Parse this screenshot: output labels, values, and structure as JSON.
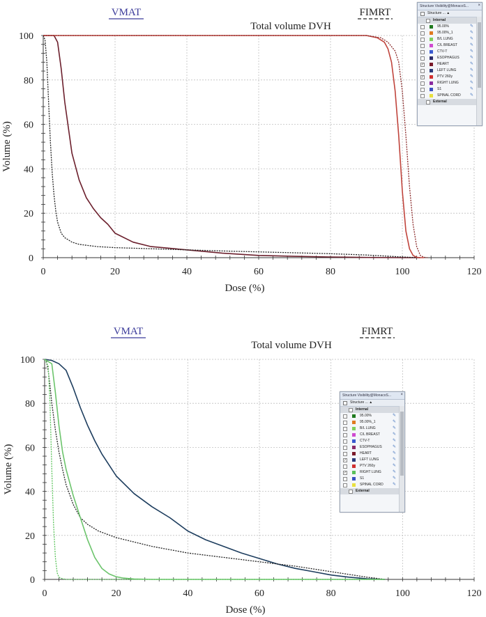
{
  "chart_data": [
    {
      "type": "line",
      "title": "Total volume DVH",
      "xlabel": "Dose (%)",
      "ylabel": "Volume (%)",
      "xlim": [
        0,
        120
      ],
      "ylim": [
        0,
        100
      ],
      "xticks": [
        "0",
        "20",
        "40",
        "60",
        "80",
        "100",
        "120"
      ],
      "yticks": [
        "0",
        "20",
        "40",
        "60",
        "80",
        "100"
      ],
      "grid": "dashed",
      "legend": {
        "items": [
          {
            "label": "VMAT",
            "style": "solid",
            "color": "#3b3b9a"
          },
          {
            "label": "FIMRT",
            "style": "dashed",
            "color": "#222222"
          }
        ],
        "placement": "top"
      },
      "series": [
        {
          "color": "#6b1f2c",
          "style": "solid",
          "x": [
            0,
            3,
            4,
            5,
            6,
            8,
            10,
            12,
            14,
            16,
            18,
            20,
            25,
            30,
            40,
            50,
            60,
            70,
            80,
            90,
            100,
            105
          ],
          "y": [
            100,
            100,
            97,
            85,
            70,
            47,
            35,
            27,
            22,
            18,
            15,
            11,
            7,
            5,
            3.5,
            2,
            1,
            0.6,
            0.3,
            0.1,
            0,
            0
          ]
        },
        {
          "color": "#222222",
          "style": "dashed",
          "x": [
            0,
            0.5,
            1,
            1.5,
            2,
            2.5,
            3,
            3.5,
            4,
            5,
            6,
            8,
            10,
            15,
            20,
            30,
            40,
            50,
            60,
            70,
            80,
            90,
            100,
            105
          ],
          "y": [
            100,
            98,
            88,
            70,
            52,
            38,
            28,
            21,
            16,
            11,
            9,
            7,
            6,
            5,
            4.5,
            4,
            3.5,
            3,
            2.6,
            2.2,
            1.8,
            1.2,
            0.3,
            0
          ]
        },
        {
          "color": "#c0443c",
          "style": "solid",
          "x": [
            0,
            80,
            90,
            93,
            95,
            96,
            97,
            98,
            99,
            100,
            101,
            102,
            103,
            104,
            105,
            106
          ],
          "y": [
            100,
            100,
            100,
            99,
            97,
            94,
            88,
            75,
            55,
            30,
            12,
            4,
            1,
            0.2,
            0,
            0
          ]
        },
        {
          "color": "#8a2a2a",
          "style": "dashed",
          "x": [
            0,
            80,
            90,
            94,
            96,
            98,
            99,
            100,
            101,
            102,
            103,
            104,
            105,
            106,
            107
          ],
          "y": [
            100,
            100,
            100,
            99,
            97,
            93,
            88,
            75,
            55,
            32,
            15,
            5,
            1,
            0.2,
            0
          ]
        }
      ]
    },
    {
      "type": "line",
      "title": "Total volume DVH",
      "xlabel": "Dose (%)",
      "ylabel": "Volume (%)",
      "xlim": [
        0,
        120
      ],
      "ylim": [
        0,
        100
      ],
      "xticks": [
        "0",
        "20",
        "40",
        "60",
        "80",
        "100",
        "120"
      ],
      "yticks": [
        "0",
        "20",
        "40",
        "60",
        "80",
        "100"
      ],
      "grid": "dashed",
      "legend": {
        "items": [
          {
            "label": "VMAT",
            "style": "solid",
            "color": "#3b3b9a"
          },
          {
            "label": "FIMRT",
            "style": "dashed",
            "color": "#222222"
          }
        ],
        "placement": "top"
      },
      "series": [
        {
          "color": "#1d3d5e",
          "style": "solid",
          "x": [
            0,
            2,
            4,
            6,
            8,
            10,
            12,
            14,
            16,
            18,
            20,
            25,
            30,
            35,
            40,
            45,
            50,
            55,
            60,
            65,
            70,
            75,
            80,
            85,
            90,
            95
          ],
          "y": [
            100,
            99.5,
            98,
            95,
            87,
            78,
            70,
            63,
            57,
            52,
            47,
            39,
            33,
            28,
            22,
            18,
            15,
            12,
            9.5,
            7,
            5,
            3.5,
            2,
            1,
            0.3,
            0
          ]
        },
        {
          "color": "#222222",
          "style": "dashed",
          "x": [
            0,
            0.5,
            1,
            1.5,
            2,
            3,
            4,
            5,
            6,
            8,
            10,
            12,
            15,
            20,
            25,
            30,
            40,
            50,
            60,
            70,
            80,
            90,
            95
          ],
          "y": [
            100,
            99,
            95,
            88,
            80,
            68,
            58,
            50,
            43,
            34,
            28,
            25,
            22,
            19,
            17,
            15,
            12,
            10,
            8,
            6,
            3.5,
            1,
            0
          ]
        },
        {
          "color": "#6cc46c",
          "style": "solid",
          "x": [
            0,
            2,
            3,
            4,
            5,
            6,
            8,
            10,
            12,
            14,
            16,
            18,
            20,
            22,
            25,
            30,
            40,
            60,
            80,
            95
          ],
          "y": [
            100,
            98,
            85,
            70,
            58,
            50,
            38,
            28,
            18,
            10,
            5,
            2.5,
            1.2,
            0.6,
            0.2,
            0,
            0,
            0,
            0,
            0
          ]
        },
        {
          "color": "#5cc45c",
          "style": "dashed",
          "x": [
            0,
            1,
            1.5,
            2,
            2.5,
            3,
            3.5,
            4,
            5,
            6,
            10,
            95
          ],
          "y": [
            100,
            97,
            80,
            50,
            25,
            10,
            3,
            1,
            0.3,
            0,
            0,
            0
          ]
        }
      ]
    }
  ],
  "panels": [
    {
      "title": "Structure Visibility@MonacoS...",
      "header": "Structure ...",
      "rows": [
        {
          "type": "group",
          "label": "Internal"
        },
        {
          "checked": false,
          "color": "#1f7a1f",
          "label": "95.00%"
        },
        {
          "checked": false,
          "color": "#e07a20",
          "label": "95.00%_1"
        },
        {
          "checked": false,
          "color": "#7fcf5c",
          "label": "B/L LUNG"
        },
        {
          "checked": false,
          "color": "#d04ad0",
          "label": "C/L BREAST"
        },
        {
          "checked": false,
          "color": "#3a5ad0",
          "label": "CTV-T"
        },
        {
          "checked": false,
          "color": "#2a2a6a",
          "label": "ESOPHAGUS"
        },
        {
          "checked": true,
          "color": "#7a1a2a",
          "label": "HEART"
        },
        {
          "checked": false,
          "color": "#2a3a7a",
          "label": "LEFT LUNG"
        },
        {
          "checked": true,
          "color": "#d03030",
          "label": "PTV 260y"
        },
        {
          "checked": false,
          "color": "#8a2aa0",
          "label": "RIGHT LUNG"
        },
        {
          "checked": false,
          "color": "#3a50c0",
          "label": "S1"
        },
        {
          "checked": false,
          "color": "#e8e040",
          "label": "SPINAL CORD"
        },
        {
          "type": "group",
          "label": "External"
        }
      ]
    },
    {
      "title": "Structure Visibility@MonacoS...",
      "header": "Structure ...",
      "rows": [
        {
          "type": "group",
          "label": "Internal"
        },
        {
          "checked": false,
          "color": "#1f7a1f",
          "label": "95.00%"
        },
        {
          "checked": false,
          "color": "#e07a20",
          "label": "95.00%_1"
        },
        {
          "checked": false,
          "color": "#7fcf5c",
          "label": "B/L LUNG"
        },
        {
          "checked": false,
          "color": "#d04ad0",
          "label": "C/L BREAST"
        },
        {
          "checked": false,
          "color": "#3a5ad0",
          "label": "CTV-T"
        },
        {
          "checked": false,
          "color": "#8a2a6a",
          "label": "ESOPHAGUS"
        },
        {
          "checked": false,
          "color": "#7a1a2a",
          "label": "HEART"
        },
        {
          "checked": true,
          "color": "#2a3a7a",
          "label": "LEFT LUNG"
        },
        {
          "checked": false,
          "color": "#d03030",
          "label": "PTV 260y"
        },
        {
          "checked": true,
          "color": "#5ac05a",
          "label": "RIGHT LUNG"
        },
        {
          "checked": false,
          "color": "#3a50c0",
          "label": "S1"
        },
        {
          "checked": false,
          "color": "#e8e040",
          "label": "SPINAL CORD"
        },
        {
          "type": "group",
          "label": "External"
        }
      ]
    }
  ]
}
